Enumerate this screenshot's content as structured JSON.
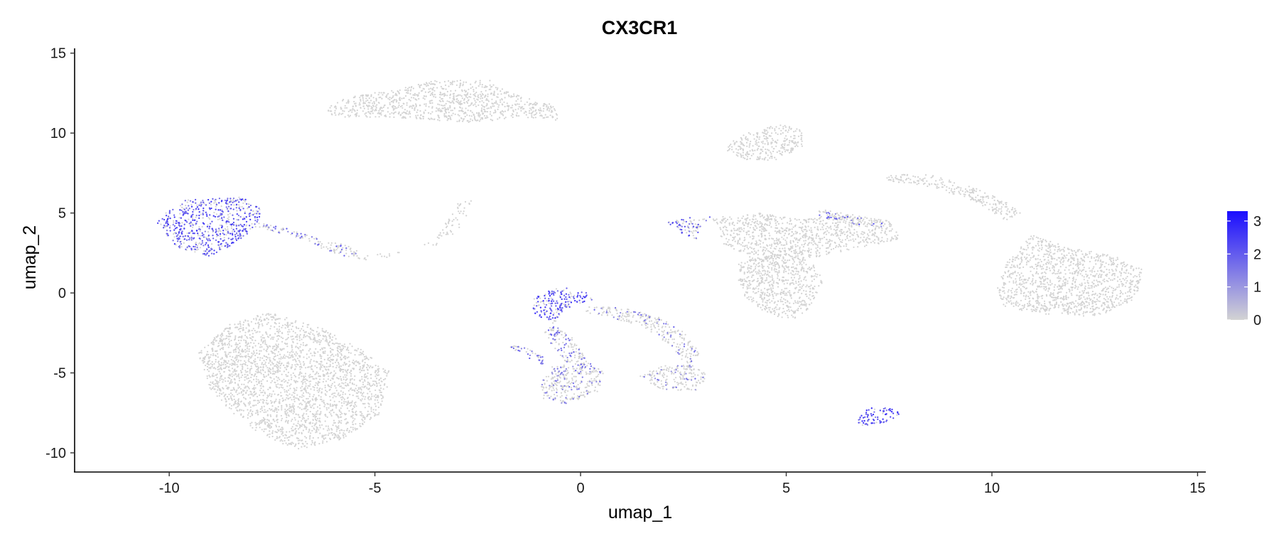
{
  "chart_data": {
    "type": "scatter",
    "title": "CX3CR1",
    "xlabel": "umap_1",
    "ylabel": "umap_2",
    "xlim": [
      -12.3,
      15.2
    ],
    "ylim": [
      -11.2,
      15.3
    ],
    "x_ticks": [
      -10,
      -5,
      0,
      5,
      10,
      15
    ],
    "y_ticks": [
      -10,
      -5,
      0,
      5,
      10,
      15
    ],
    "x_tick_labels": [
      "-10",
      "-5",
      "0",
      "5",
      "10",
      "15"
    ],
    "y_tick_labels": [
      "-10",
      "-5",
      "0",
      "5",
      "10",
      "15"
    ],
    "grid": false,
    "legend": {
      "placement": "right",
      "type": "colorbar",
      "range": [
        0,
        3.3
      ],
      "ticks": [
        0,
        1,
        2,
        3
      ],
      "tick_labels": [
        "0",
        "1",
        "2",
        "3"
      ],
      "low_color": "#d3d3d3",
      "high_color": "#1a0dff"
    },
    "clusters": [
      {
        "label": "top-left-arc",
        "expr": 0.0,
        "frac": 0.0,
        "polygons": [
          [
            [
              -6.2,
              11.6
            ],
            [
              -5.6,
              12.3
            ],
            [
              -4.5,
              12.7
            ],
            [
              -3.5,
              13.3
            ],
            [
              -2.2,
              13.3
            ],
            [
              -1.8,
              12.6
            ],
            [
              -0.6,
              11.7
            ],
            [
              -0.5,
              10.8
            ],
            [
              -1.5,
              11.0
            ],
            [
              -2.5,
              10.6
            ],
            [
              -3.5,
              10.8
            ],
            [
              -4.6,
              11.0
            ],
            [
              -6.0,
              11.0
            ]
          ]
        ]
      },
      {
        "label": "top-center-blob",
        "expr": 0.0,
        "frac": 0.0,
        "polygons": [
          [
            [
              3.6,
              9.3
            ],
            [
              4.0,
              10.0
            ],
            [
              4.8,
              10.6
            ],
            [
              5.4,
              10.2
            ],
            [
              5.4,
              9.2
            ],
            [
              4.8,
              8.3
            ],
            [
              4.0,
              8.3
            ],
            [
              3.5,
              9.0
            ]
          ]
        ]
      },
      {
        "label": "left-blob",
        "expr": 2.4,
        "frac": 0.68,
        "polygons": [
          [
            [
              -10.2,
              4.8
            ],
            [
              -9.6,
              5.8
            ],
            [
              -8.2,
              6.0
            ],
            [
              -7.8,
              5.3
            ],
            [
              -7.8,
              4.3
            ],
            [
              -8.4,
              3.1
            ],
            [
              -9.0,
              2.3
            ],
            [
              -9.8,
              2.8
            ],
            [
              -10.3,
              4.4
            ]
          ]
        ]
      },
      {
        "label": "left-trail",
        "expr": 1.8,
        "frac": 0.3,
        "polygons": [
          [
            [
              -7.9,
              4.2
            ],
            [
              -6.9,
              3.4
            ],
            [
              -6.0,
              2.5
            ],
            [
              -5.3,
              2.0
            ],
            [
              -5.5,
              2.9
            ],
            [
              -6.5,
              3.5
            ],
            [
              -7.6,
              4.4
            ]
          ]
        ]
      },
      {
        "label": "left-thin-arc",
        "expr": 0.0,
        "frac": 0.0,
        "polygons": [
          [
            [
              -5.3,
              2.4
            ],
            [
              -4.5,
              2.6
            ],
            [
              -3.5,
              3.0
            ],
            [
              -3.0,
              3.7
            ],
            [
              -2.8,
              4.6
            ],
            [
              -2.6,
              5.8
            ],
            [
              -2.9,
              5.9
            ],
            [
              -3.2,
              4.7
            ],
            [
              -3.5,
              3.4
            ],
            [
              -4.4,
              2.3
            ],
            [
              -5.3,
              2.0
            ]
          ]
        ]
      },
      {
        "label": "bottom-left-large",
        "expr": 0.0,
        "frac": 0.0,
        "polygons": [
          [
            [
              -9.3,
              -3.8
            ],
            [
              -8.6,
              -2.0
            ],
            [
              -7.6,
              -1.2
            ],
            [
              -6.3,
              -2.2
            ],
            [
              -5.3,
              -3.6
            ],
            [
              -4.6,
              -5.0
            ],
            [
              -4.9,
              -7.6
            ],
            [
              -5.8,
              -9.2
            ],
            [
              -6.9,
              -9.8
            ],
            [
              -7.8,
              -8.8
            ],
            [
              -8.5,
              -7.4
            ],
            [
              -9.0,
              -6.0
            ]
          ]
        ]
      },
      {
        "label": "center-top-blob",
        "expr": 2.6,
        "frac": 0.72,
        "polygons": [
          [
            [
              -1.2,
              -0.8
            ],
            [
              -1.1,
              -0.2
            ],
            [
              -0.6,
              0.35
            ],
            [
              0.1,
              0.2
            ],
            [
              0.3,
              -0.4
            ],
            [
              -0.4,
              -1.0
            ],
            [
              -0.6,
              -1.8
            ],
            [
              -1.1,
              -1.4
            ]
          ]
        ]
      },
      {
        "label": "center-left-arm",
        "expr": 1.9,
        "frac": 0.35,
        "polygons": [
          [
            [
              -0.7,
              -1.8
            ],
            [
              -0.2,
              -2.8
            ],
            [
              0.2,
              -4.3
            ],
            [
              0.0,
              -5.2
            ],
            [
              -0.4,
              -4.2
            ],
            [
              -0.9,
              -2.6
            ]
          ]
        ]
      },
      {
        "label": "center-right-arm",
        "expr": 1.7,
        "frac": 0.18,
        "polygons": [
          [
            [
              0.2,
              -0.8
            ],
            [
              1.2,
              -1.0
            ],
            [
              2.0,
              -1.6
            ],
            [
              2.6,
              -2.6
            ],
            [
              2.9,
              -3.8
            ],
            [
              2.6,
              -4.6
            ],
            [
              2.2,
              -3.3
            ],
            [
              1.5,
              -2.1
            ],
            [
              0.7,
              -1.5
            ],
            [
              0.1,
              -1.3
            ]
          ]
        ]
      },
      {
        "label": "center-bottom-blob",
        "expr": 1.6,
        "frac": 0.22,
        "polygons": [
          [
            [
              -1.0,
              -5.8
            ],
            [
              -0.7,
              -4.6
            ],
            [
              0.2,
              -4.3
            ],
            [
              0.6,
              -5.0
            ],
            [
              0.4,
              -6.2
            ],
            [
              -0.4,
              -7.0
            ],
            [
              -0.9,
              -6.6
            ]
          ]
        ]
      },
      {
        "label": "center-bottom-right-blob",
        "expr": 1.5,
        "frac": 0.18,
        "polygons": [
          [
            [
              1.4,
              -5.2
            ],
            [
              2.0,
              -4.5
            ],
            [
              2.8,
              -4.5
            ],
            [
              3.1,
              -5.2
            ],
            [
              2.8,
              -6.1
            ],
            [
              2.0,
              -6.1
            ]
          ]
        ]
      },
      {
        "label": "center-left-sliver",
        "expr": 1.9,
        "frac": 0.45,
        "polygons": [
          [
            [
              -1.7,
              -3.2
            ],
            [
              -1.3,
              -3.4
            ],
            [
              -0.9,
              -4.0
            ],
            [
              -0.9,
              -4.5
            ],
            [
              -1.4,
              -3.9
            ],
            [
              -1.7,
              -3.4
            ]
          ]
        ]
      },
      {
        "label": "small-bottom-cluster",
        "expr": 2.6,
        "frac": 0.82,
        "polygons": [
          [
            [
              6.7,
              -7.9
            ],
            [
              7.0,
              -7.2
            ],
            [
              7.6,
              -7.2
            ],
            [
              7.8,
              -7.6
            ],
            [
              7.3,
              -8.2
            ],
            [
              6.8,
              -8.3
            ]
          ]
        ]
      },
      {
        "label": "mid-left-wedge",
        "expr": 2.2,
        "frac": 0.42,
        "polygons": [
          [
            [
              2.1,
              4.5
            ],
            [
              2.6,
              4.7
            ],
            [
              3.2,
              4.9
            ],
            [
              2.9,
              4.1
            ],
            [
              2.8,
              3.2
            ],
            [
              2.3,
              3.9
            ]
          ]
        ]
      },
      {
        "label": "mid-funnel-top",
        "expr": 0.0,
        "frac": 0.0,
        "polygons": [
          [
            [
              3.2,
              4.7
            ],
            [
              4.4,
              5.0
            ],
            [
              5.5,
              4.6
            ],
            [
              6.2,
              5.0
            ],
            [
              7.5,
              4.5
            ],
            [
              7.8,
              3.4
            ],
            [
              6.4,
              2.6
            ],
            [
              5.3,
              2.0
            ],
            [
              4.3,
              2.0
            ],
            [
              3.5,
              3.0
            ]
          ]
        ]
      },
      {
        "label": "mid-funnel-bottom",
        "expr": 0.0,
        "frac": 0.0,
        "polygons": [
          [
            [
              3.8,
              1.9
            ],
            [
              4.6,
              2.4
            ],
            [
              5.6,
              2.1
            ],
            [
              5.9,
              0.8
            ],
            [
              5.6,
              -0.8
            ],
            [
              5.2,
              -1.8
            ],
            [
              4.6,
              -1.4
            ],
            [
              4.0,
              -0.3
            ],
            [
              3.8,
              1.0
            ]
          ]
        ]
      },
      {
        "label": "mid-right-streak",
        "expr": 2.0,
        "frac": 0.3,
        "polygons": [
          [
            [
              5.8,
              5.3
            ],
            [
              6.3,
              5.1
            ],
            [
              7.3,
              4.5
            ],
            [
              7.4,
              4.1
            ],
            [
              6.4,
              4.4
            ],
            [
              5.8,
              4.8
            ]
          ]
        ]
      },
      {
        "label": "right-thin-arm",
        "expr": 0.0,
        "frac": 0.0,
        "polygons": [
          [
            [
              7.3,
              7.4
            ],
            [
              8.5,
              7.4
            ],
            [
              9.6,
              6.6
            ],
            [
              10.4,
              5.6
            ],
            [
              10.7,
              5.0
            ],
            [
              10.3,
              4.5
            ],
            [
              9.7,
              5.6
            ],
            [
              8.6,
              6.6
            ],
            [
              7.5,
              7.0
            ]
          ]
        ]
      },
      {
        "label": "right-large-blob",
        "expr": 0.0,
        "frac": 0.0,
        "polygons": [
          [
            [
              10.1,
              0.2
            ],
            [
              10.4,
              2.1
            ],
            [
              11.0,
              3.7
            ],
            [
              11.8,
              2.9
            ],
            [
              13.0,
              2.3
            ],
            [
              13.7,
              1.4
            ],
            [
              13.5,
              -0.4
            ],
            [
              12.6,
              -1.5
            ],
            [
              11.2,
              -1.3
            ],
            [
              10.3,
              -0.9
            ]
          ]
        ]
      }
    ],
    "colorbar_image_note": ""
  }
}
